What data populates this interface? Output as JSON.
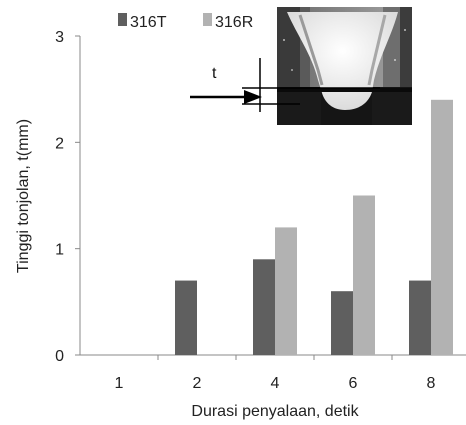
{
  "chart_data": {
    "type": "bar",
    "categories": [
      "1",
      "2",
      "4",
      "6",
      "8"
    ],
    "series": [
      {
        "name": "316T",
        "values": [
          0,
          0.7,
          0.9,
          0.6,
          0.7
        ],
        "color": "#5f5f5f"
      },
      {
        "name": "316R",
        "values": [
          0,
          0,
          1.2,
          1.5,
          2.4
        ],
        "color": "#b2b2b2"
      }
    ],
    "xlabel": "Durasi penyalaan, detik",
    "ylabel": "Tinggi tonjolan, t(mm)",
    "ylim": [
      0,
      3
    ],
    "yticks": [
      "0",
      "1",
      "2",
      "3"
    ],
    "grid": false,
    "legend_position": "top"
  },
  "inset": {
    "label": "t",
    "description_icon": "weld-cross-section-photo"
  }
}
